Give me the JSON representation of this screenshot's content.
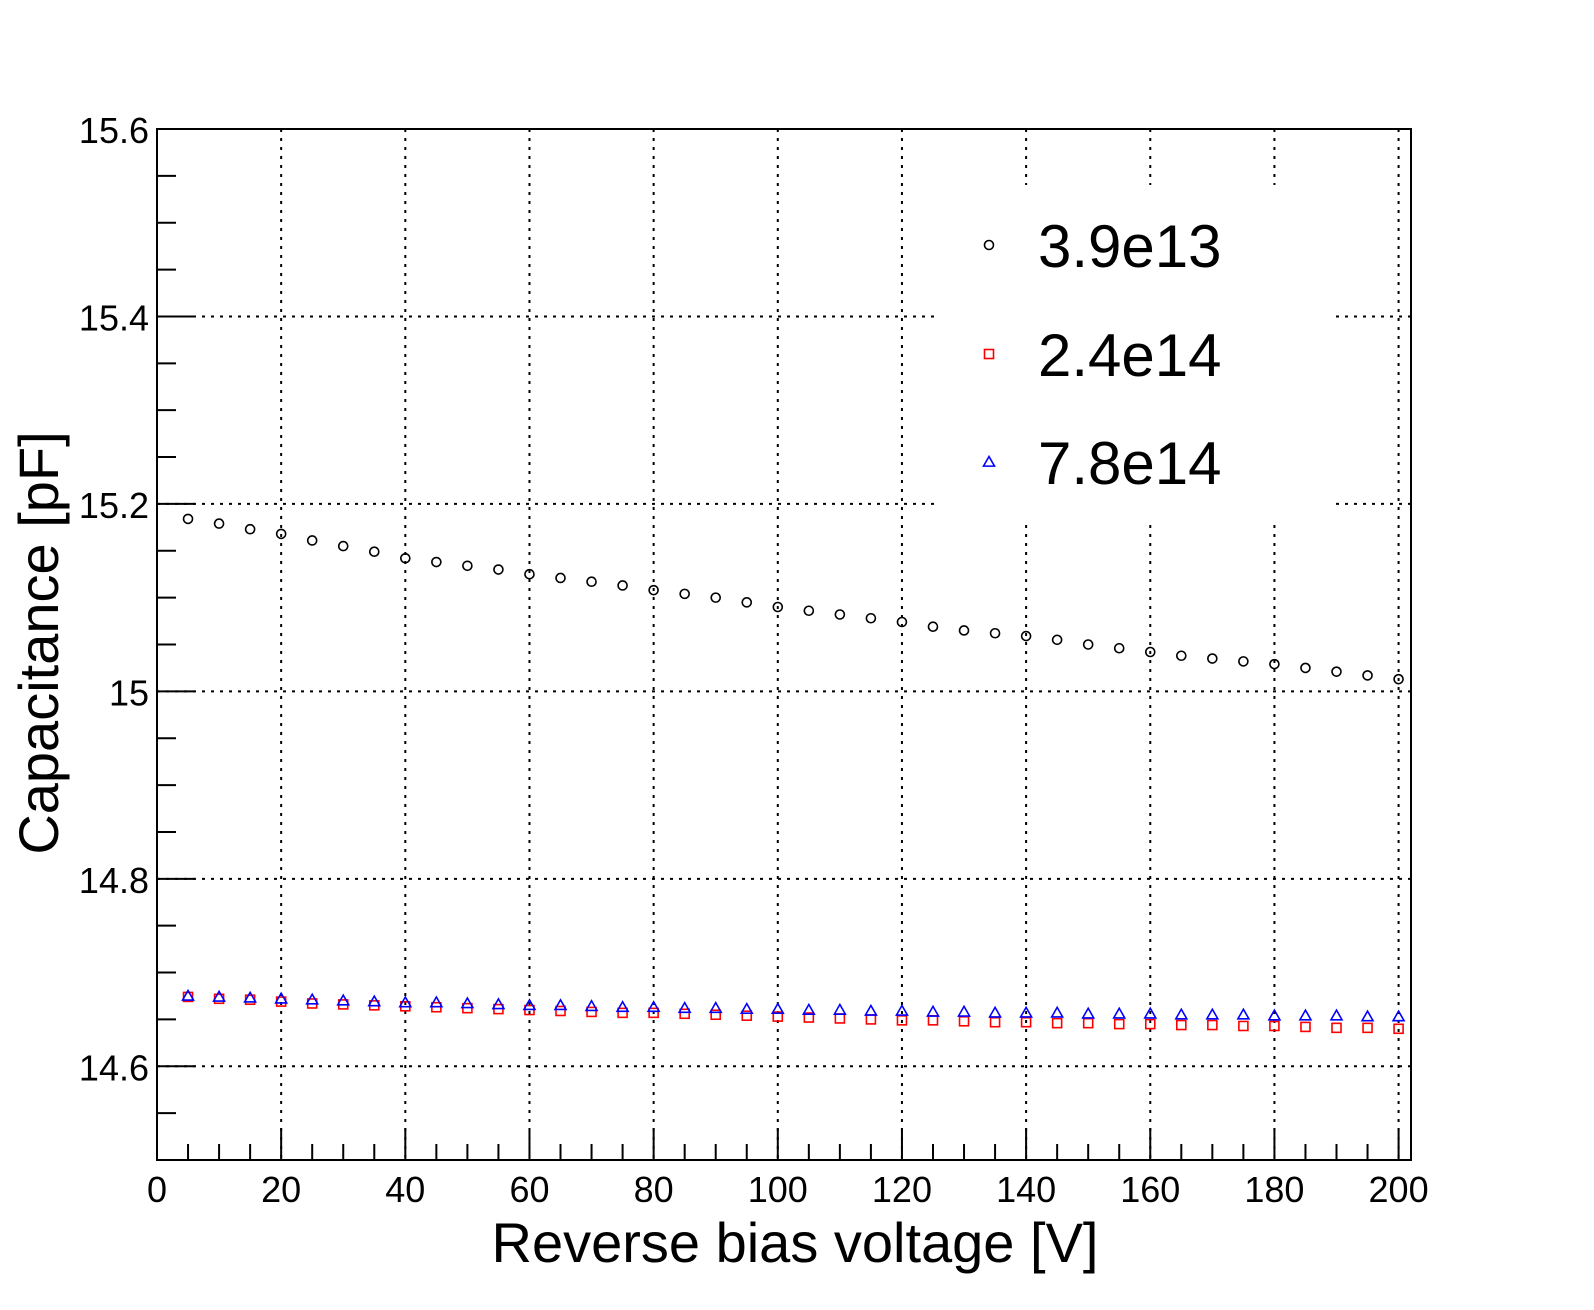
{
  "chart_data": {
    "type": "scatter",
    "xlabel": "Reverse bias voltage [V]",
    "ylabel": "Capacitance [pF]",
    "xlim": [
      0,
      202
    ],
    "ylim": [
      14.5,
      15.6
    ],
    "grid": true,
    "legend_position": "top-right",
    "x_ticks": [
      {
        "value": 0,
        "label": "0"
      },
      {
        "value": 20,
        "label": "20"
      },
      {
        "value": 40,
        "label": "40"
      },
      {
        "value": 60,
        "label": "60"
      },
      {
        "value": 80,
        "label": "80"
      },
      {
        "value": 100,
        "label": "100"
      },
      {
        "value": 120,
        "label": "120"
      },
      {
        "value": 140,
        "label": "140"
      },
      {
        "value": 160,
        "label": "160"
      },
      {
        "value": 180,
        "label": "180"
      },
      {
        "value": 200,
        "label": "200"
      }
    ],
    "y_ticks": [
      {
        "value": 14.6,
        "label": "14.6"
      },
      {
        "value": 14.8,
        "label": "14.8"
      },
      {
        "value": 15.0,
        "label": "15"
      },
      {
        "value": 15.2,
        "label": "15.2"
      },
      {
        "value": 15.4,
        "label": "15.4"
      },
      {
        "value": 15.6,
        "label": "15.6"
      }
    ],
    "x": [
      5,
      10,
      15,
      20,
      25,
      30,
      35,
      40,
      45,
      50,
      55,
      60,
      65,
      70,
      75,
      80,
      85,
      90,
      95,
      100,
      105,
      110,
      115,
      120,
      125,
      130,
      135,
      140,
      145,
      150,
      155,
      160,
      165,
      170,
      175,
      180,
      185,
      190,
      195,
      200
    ],
    "series": [
      {
        "name": "3.9e13",
        "marker": "circle",
        "color": "#000000",
        "values": [
          15.184,
          15.179,
          15.173,
          15.168,
          15.161,
          15.155,
          15.149,
          15.142,
          15.138,
          15.134,
          15.13,
          15.125,
          15.121,
          15.117,
          15.113,
          15.108,
          15.104,
          15.1,
          15.095,
          15.09,
          15.086,
          15.082,
          15.078,
          15.074,
          15.069,
          15.065,
          15.062,
          15.059,
          15.055,
          15.05,
          15.046,
          15.042,
          15.038,
          15.035,
          15.032,
          15.029,
          15.025,
          15.021,
          15.017,
          15.013
        ]
      },
      {
        "name": "2.4e14",
        "marker": "square",
        "color": "#ff0000",
        "values": [
          14.674,
          14.672,
          14.671,
          14.669,
          14.667,
          14.666,
          14.665,
          14.664,
          14.663,
          14.662,
          14.661,
          14.66,
          14.659,
          14.658,
          14.657,
          14.657,
          14.656,
          14.655,
          14.654,
          14.653,
          14.652,
          14.651,
          14.65,
          14.649,
          14.649,
          14.648,
          14.647,
          14.647,
          14.646,
          14.646,
          14.645,
          14.645,
          14.644,
          14.644,
          14.643,
          14.643,
          14.642,
          14.641,
          14.641,
          14.64
        ]
      },
      {
        "name": "7.8e14",
        "marker": "triangle",
        "color": "#0000ff",
        "values": [
          14.675,
          14.674,
          14.673,
          14.672,
          14.671,
          14.67,
          14.669,
          14.668,
          14.668,
          14.667,
          14.666,
          14.665,
          14.665,
          14.664,
          14.663,
          14.663,
          14.662,
          14.662,
          14.661,
          14.661,
          14.66,
          14.66,
          14.659,
          14.659,
          14.658,
          14.658,
          14.657,
          14.657,
          14.657,
          14.656,
          14.656,
          14.656,
          14.655,
          14.655,
          14.655,
          14.654,
          14.654,
          14.654,
          14.653,
          14.653
        ]
      }
    ]
  }
}
